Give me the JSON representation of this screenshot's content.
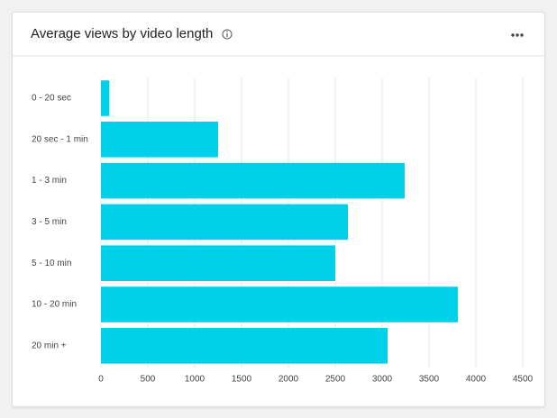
{
  "chart_data": {
    "type": "bar",
    "orientation": "horizontal",
    "title": "Average views by video length",
    "categories": [
      "0 - 20 sec",
      "20 sec - 1 min",
      "1 - 3 min",
      "3 - 5 min",
      "5 - 10 min",
      "10 - 20 min",
      "20 min +"
    ],
    "values": [
      90,
      1250,
      3240,
      2635,
      2500,
      3808,
      3058
    ],
    "color": "#00d0e8",
    "xlim": [
      0,
      4500
    ],
    "xticks": [
      0,
      500,
      1000,
      1500,
      2000,
      2500,
      3000,
      3500,
      4000,
      4500
    ],
    "grid": true
  }
}
